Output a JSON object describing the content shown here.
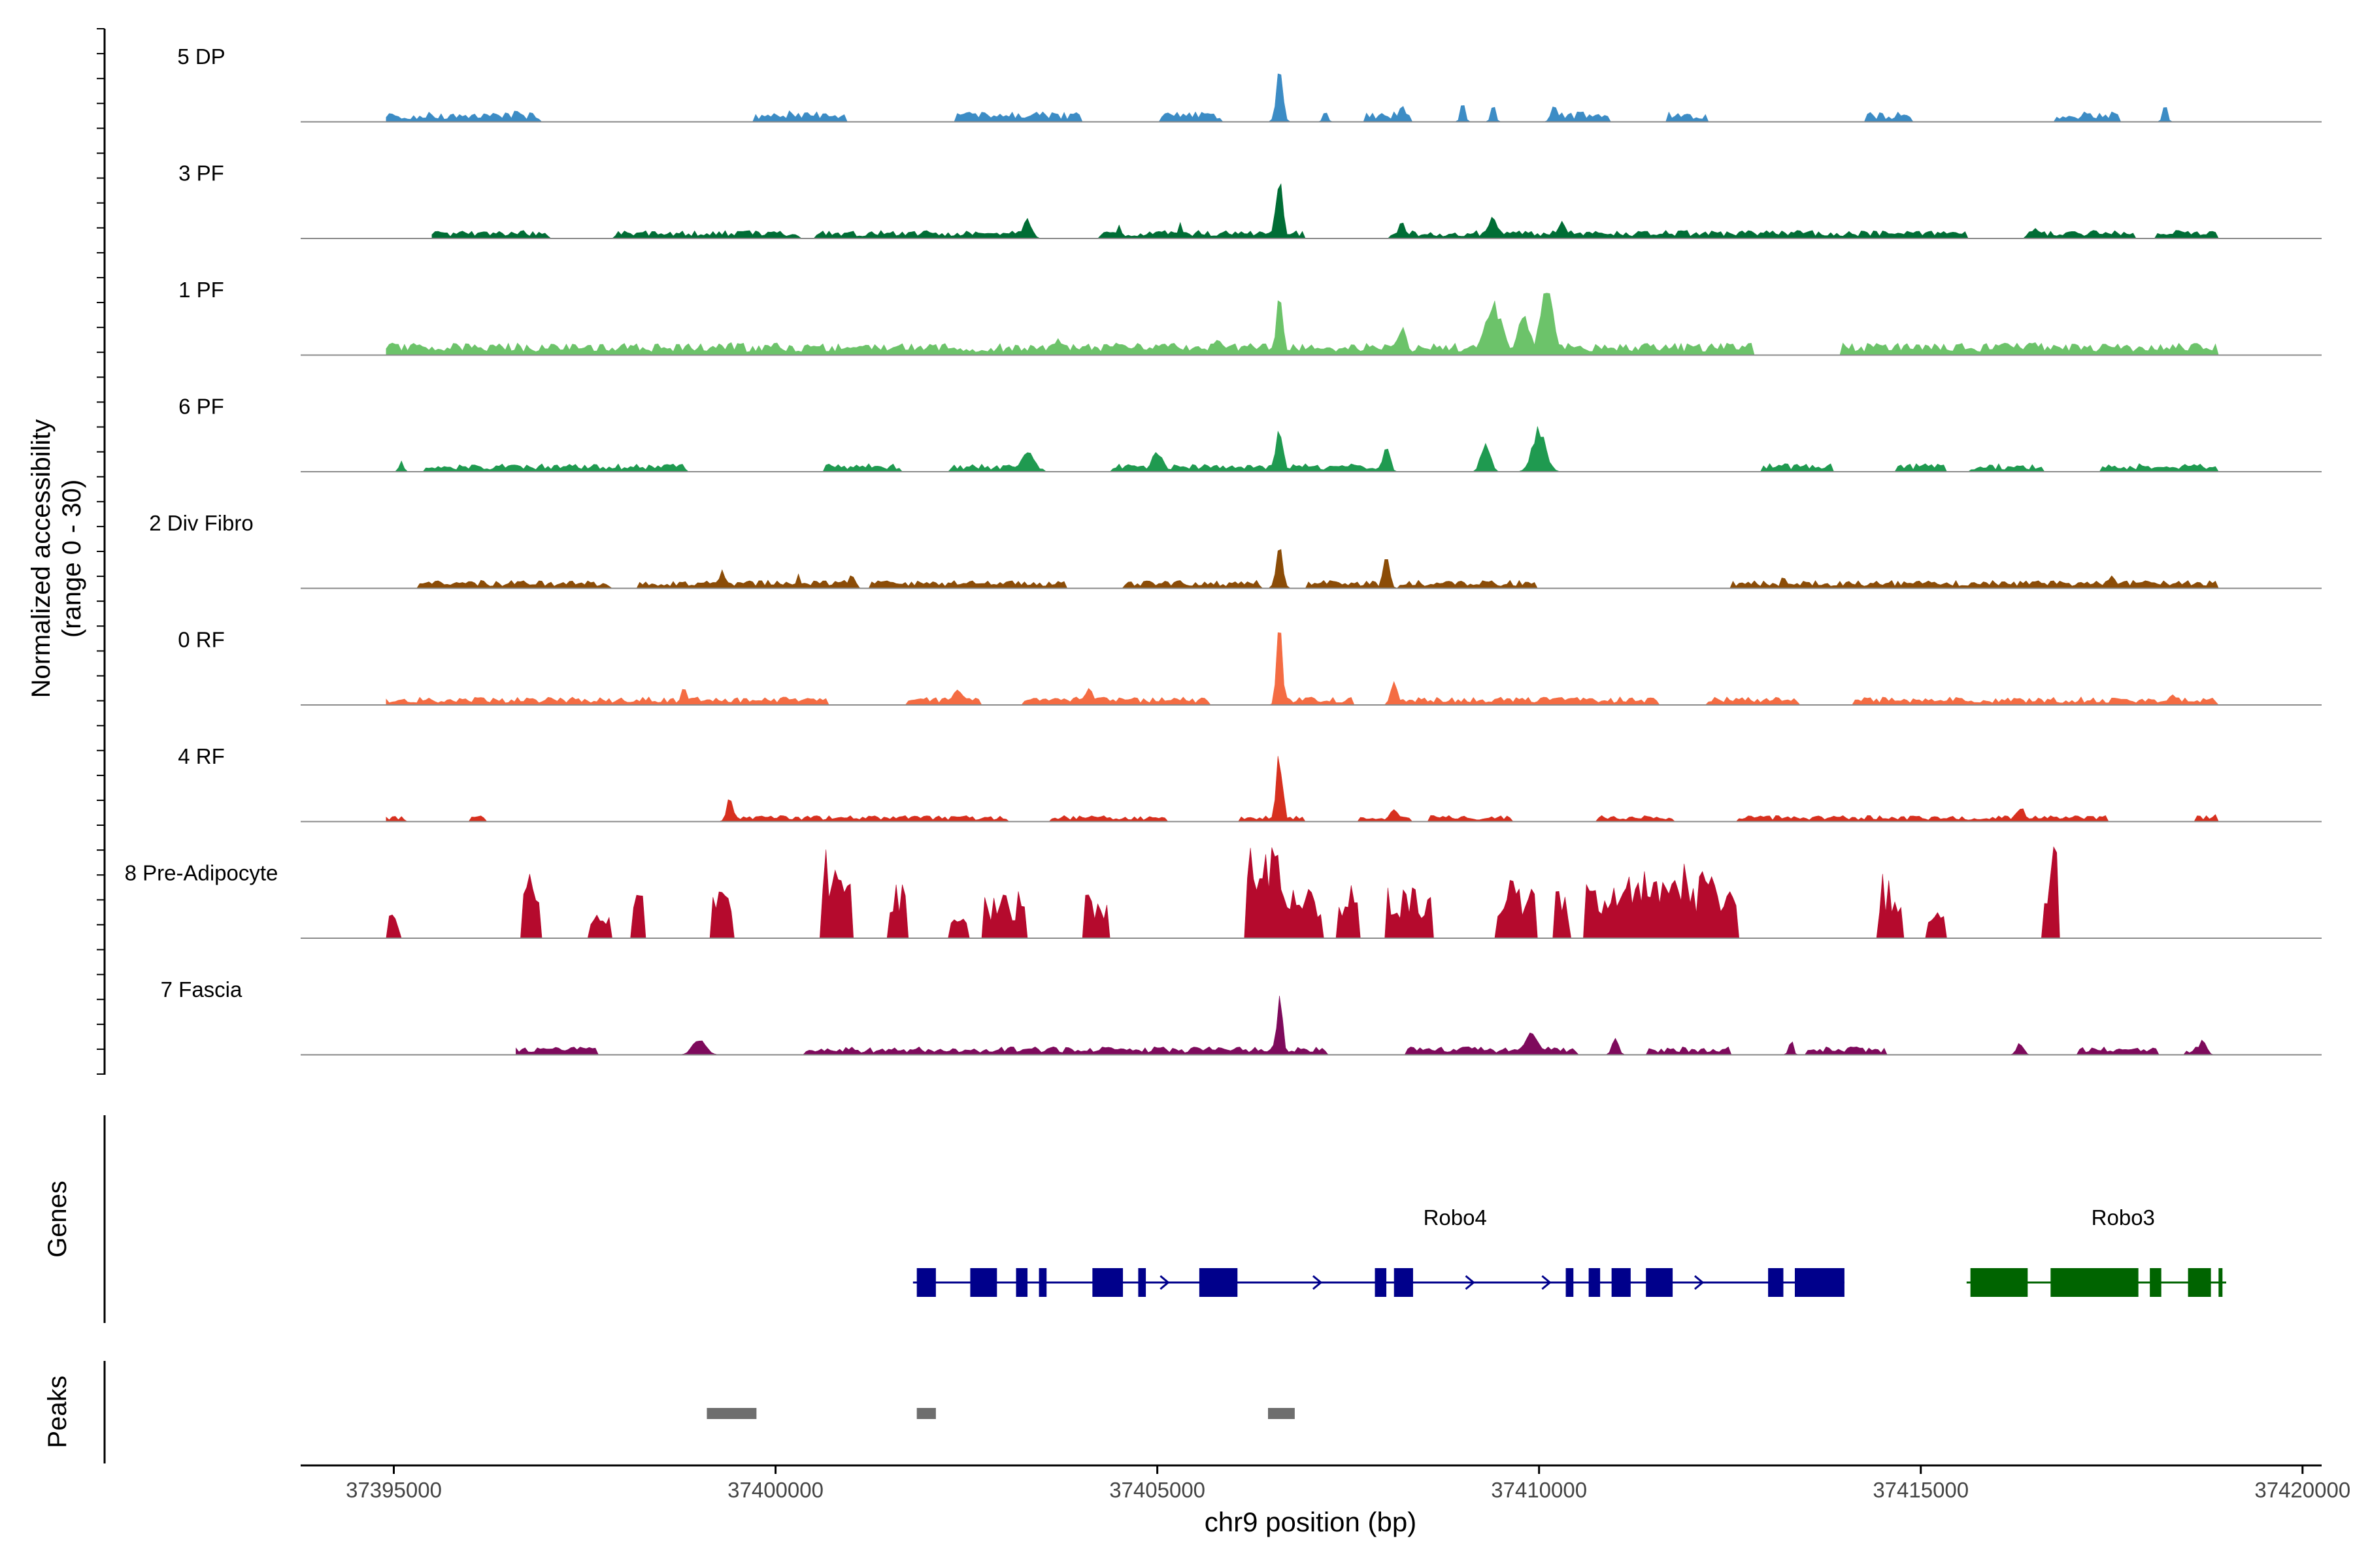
{
  "chart_data": {
    "type": "area",
    "title": "",
    "ylabel_line1": "Normalized accessibility",
    "ylabel_line2": "(range 0 - 30)",
    "y_range": [
      0,
      30
    ],
    "xlabel": "chr9 position (bp)",
    "xlim": [
      37393780,
      37420250
    ],
    "x_ticks": [
      "37395000",
      "37400000",
      "37405000",
      "37410000",
      "37415000",
      "37420000"
    ],
    "tracks": [
      {
        "name": "5 DP",
        "color": "#3C8CC5",
        "seed": 3,
        "start": 37394900,
        "end": 37418900,
        "base": 5,
        "density": 0.45,
        "kind": "sparse",
        "peaks": [
          [
            37406600,
            30,
            60
          ],
          [
            37407200,
            8,
            40
          ],
          [
            37408200,
            10,
            60
          ],
          [
            37409000,
            12,
            40
          ],
          [
            37409400,
            12,
            40
          ],
          [
            37410200,
            10,
            60
          ],
          [
            37418200,
            10,
            40
          ],
          [
            37400200,
            8,
            40
          ],
          [
            37396600,
            8,
            20
          ]
        ]
      },
      {
        "name": "3 PF",
        "color": "#006D35",
        "seed": 7,
        "start": 37395500,
        "end": 37418900,
        "base": 4,
        "density": 0.7,
        "kind": "dense",
        "peaks": [
          [
            37406600,
            38,
            60
          ],
          [
            37403300,
            12,
            80
          ],
          [
            37408200,
            12,
            60
          ],
          [
            37409400,
            12,
            100
          ],
          [
            37410300,
            10,
            80
          ],
          [
            37418900,
            10,
            30
          ],
          [
            37416500,
            8,
            60
          ],
          [
            37405300,
            10,
            40
          ],
          [
            37404500,
            8,
            40
          ]
        ]
      },
      {
        "name": "1 PF",
        "color": "#6CC36A",
        "seed": 11,
        "start": 37394900,
        "end": 37418900,
        "base": 6,
        "density": 0.9,
        "kind": "dense",
        "peaks": [
          [
            37406600,
            38,
            60
          ],
          [
            37408200,
            18,
            80
          ],
          [
            37409400,
            30,
            160
          ],
          [
            37410100,
            38,
            120
          ],
          [
            37409800,
            22,
            120
          ],
          [
            37405800,
            10,
            80
          ],
          [
            37399400,
            9,
            60
          ],
          [
            37403700,
            9,
            80
          ],
          [
            37416500,
            9,
            60
          ],
          [
            37418900,
            7,
            40
          ]
        ]
      },
      {
        "name": "6 PF",
        "color": "#1F9A50",
        "seed": 19,
        "start": 37394900,
        "end": 37418900,
        "base": 4,
        "density": 0.55,
        "kind": "mixed",
        "peaks": [
          [
            37406600,
            30,
            60
          ],
          [
            37408000,
            18,
            60
          ],
          [
            37409300,
            20,
            80
          ],
          [
            37410000,
            28,
            120
          ],
          [
            37403300,
            12,
            120
          ],
          [
            37405000,
            12,
            100
          ],
          [
            37418900,
            8,
            40
          ],
          [
            37395100,
            6,
            30
          ]
        ]
      },
      {
        "name": "2 Div Fibro",
        "color": "#8B4C07",
        "seed": 23,
        "start": 37394900,
        "end": 37418900,
        "base": 4,
        "density": 0.65,
        "kind": "dense",
        "peaks": [
          [
            37406600,
            30,
            60
          ],
          [
            37408000,
            18,
            60
          ],
          [
            37399300,
            10,
            60
          ],
          [
            37400300,
            9,
            40
          ],
          [
            37401000,
            8,
            60
          ],
          [
            37418900,
            8,
            30
          ],
          [
            37417500,
            8,
            60
          ],
          [
            37413200,
            8,
            40
          ]
        ]
      },
      {
        "name": "0 RF",
        "color": "#F46C43",
        "seed": 29,
        "start": 37394900,
        "end": 37418900,
        "base": 4,
        "density": 0.85,
        "kind": "dense",
        "peaks": [
          [
            37406600,
            48,
            50
          ],
          [
            37408100,
            16,
            60
          ],
          [
            37398800,
            10,
            60
          ],
          [
            37402400,
            10,
            100
          ],
          [
            37404100,
            10,
            80
          ],
          [
            37418300,
            8,
            60
          ]
        ]
      },
      {
        "name": "4 RF",
        "color": "#D7301F",
        "seed": 31,
        "start": 37394900,
        "end": 37418900,
        "base": 3,
        "density": 0.55,
        "kind": "mixed",
        "peaks": [
          [
            37406600,
            40,
            60
          ],
          [
            37399400,
            14,
            60
          ],
          [
            37408100,
            8,
            80
          ],
          [
            37416300,
            9,
            80
          ],
          [
            37418900,
            14,
            20
          ]
        ]
      },
      {
        "name": "8 Pre-Adipocyte",
        "color": "#B50A2D",
        "seed": 37,
        "start": 37394900,
        "end": 37418900,
        "base": 0,
        "density": 0,
        "kind": "spiky",
        "peaks": [
          [
            37395000,
            14,
            60
          ],
          [
            37396800,
            40,
            120
          ],
          [
            37397700,
            16,
            150
          ],
          [
            37398200,
            28,
            80
          ],
          [
            37399300,
            28,
            150
          ],
          [
            37400800,
            55,
            200
          ],
          [
            37401600,
            32,
            120
          ],
          [
            37402400,
            16,
            120
          ],
          [
            37403000,
            28,
            260
          ],
          [
            37404200,
            28,
            140
          ],
          [
            37406400,
            56,
            250
          ],
          [
            37406900,
            32,
            250
          ],
          [
            37407500,
            32,
            150
          ],
          [
            37408300,
            32,
            300
          ],
          [
            37409700,
            36,
            250
          ],
          [
            37410300,
            28,
            100
          ],
          [
            37411000,
            40,
            400
          ],
          [
            37411600,
            48,
            300
          ],
          [
            37412000,
            40,
            300
          ],
          [
            37412400,
            32,
            200
          ],
          [
            37414600,
            40,
            150
          ],
          [
            37416700,
            56,
            80
          ],
          [
            37415200,
            16,
            100
          ]
        ]
      },
      {
        "name": "7 Fascia",
        "color": "#7E0A5C",
        "seed": 41,
        "start": 37396600,
        "end": 37418900,
        "base": 4,
        "density": 0.6,
        "kind": "mixed",
        "peaks": [
          [
            37406600,
            32,
            60
          ],
          [
            37409900,
            14,
            120
          ],
          [
            37399000,
            10,
            120
          ],
          [
            37411000,
            10,
            60
          ],
          [
            37418700,
            10,
            60
          ],
          [
            37416300,
            8,
            60
          ],
          [
            37413300,
            9,
            40
          ]
        ]
      }
    ],
    "genes": {
      "panel_label": "Genes",
      "items": [
        {
          "name": "Robo4",
          "strand": "+",
          "color": "#00008B",
          "start": 37401800,
          "end": 37414000,
          "exons": [
            [
              37401850,
              37402100
            ],
            [
              37402550,
              37402900
            ],
            [
              37403150,
              37403300
            ],
            [
              37403450,
              37403550
            ],
            [
              37404150,
              37404550
            ],
            [
              37404750,
              37404850
            ],
            [
              37405550,
              37406050
            ],
            [
              37407850,
              37408000
            ],
            [
              37408100,
              37408350
            ],
            [
              37410350,
              37410450
            ],
            [
              37410650,
              37410800
            ],
            [
              37410950,
              37411200
            ],
            [
              37411400,
              37411750
            ],
            [
              37413000,
              37413200
            ],
            [
              37413350,
              37414000
            ]
          ]
        },
        {
          "name": "Robo3",
          "strand": "+",
          "color": "#006400",
          "start": 37415600,
          "end": 37419000,
          "exons": [
            [
              37415650,
              37416400
            ],
            [
              37416700,
              37417850
            ],
            [
              37418000,
              37418150
            ],
            [
              37418500,
              37418800
            ],
            [
              37418900,
              37418950
            ]
          ]
        }
      ]
    },
    "peaks_track": {
      "panel_label": "Peaks",
      "color": "#6E6E6E",
      "regions": [
        [
          37399100,
          37399750
        ],
        [
          37401850,
          37402100
        ],
        [
          37406450,
          37406800
        ]
      ]
    }
  }
}
